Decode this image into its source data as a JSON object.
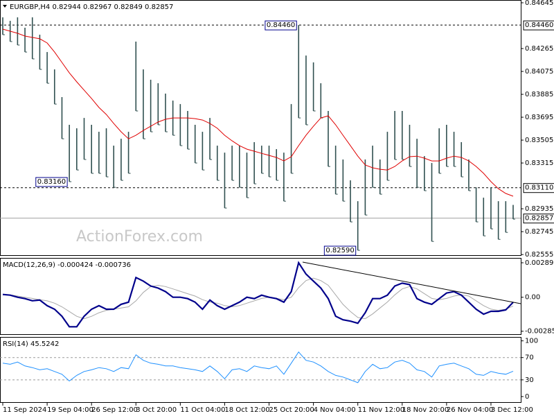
{
  "chart_data": [
    {
      "type": "hilo",
      "title": "EURGBP,H4  0.82944 0.82967 0.82849 0.82857",
      "watermark": "ActionForex.com",
      "categories": [
        "11 Sep 2024",
        null,
        null,
        null,
        null,
        null,
        "19 Sep 04:00",
        null,
        null,
        null,
        null,
        null,
        "26 Sep 12:00",
        null,
        null,
        null,
        null,
        null,
        "3 Oct 20:00",
        null,
        null,
        null,
        null,
        null,
        "11 Oct 04:00",
        null,
        null,
        null,
        null,
        null,
        "18 Oct 12:00",
        null,
        null,
        null,
        null,
        null,
        "25 Oct 20:00",
        null,
        null,
        null,
        null,
        null,
        "4 Nov 04:00",
        null,
        null,
        null,
        null,
        null,
        "11 Nov 12:00",
        null,
        null,
        null,
        null,
        null,
        "18 Nov 20:00",
        null,
        null,
        null,
        null,
        null,
        "26 Nov 04:00",
        null,
        null,
        null,
        null,
        null,
        "3 Dec 12:00",
        null,
        null,
        null
      ],
      "color": "#2f4f4f",
      "high": [
        0.84524,
        0.84495,
        0.84524,
        0.84438,
        0.84524,
        0.8438,
        0.84236,
        0.84092,
        0.83862,
        0.83632,
        0.83603,
        0.83689,
        0.83632,
        0.83574,
        0.83603,
        0.83459,
        0.83516,
        0.83574,
        0.84323,
        0.84092,
        0.84006,
        0.83977,
        0.83891,
        0.83833,
        0.83804,
        0.83747,
        0.83632,
        0.83574,
        0.83689,
        0.83459,
        0.83401,
        0.83459,
        0.83459,
        0.83401,
        0.83488,
        0.83459,
        0.83459,
        0.8343,
        0.83401,
        0.83804,
        0.8446,
        0.84207,
        0.8415,
        0.83977,
        0.83747,
        0.83459,
        0.83344,
        0.83171,
        0.82998,
        0.83344,
        0.83459,
        0.83344,
        0.83574,
        0.83747,
        0.83747,
        0.83632,
        0.83516,
        0.83372,
        0.83315,
        0.83603,
        0.83632,
        0.83574,
        0.83488,
        0.83344,
        0.83113,
        0.83027,
        0.83113,
        0.82998,
        0.82998,
        0.82967
      ],
      "low": [
        0.8438,
        0.84323,
        0.84294,
        0.84236,
        0.84179,
        0.84092,
        0.83977,
        0.83804,
        0.83516,
        0.8316,
        0.83257,
        0.83344,
        0.83229,
        0.83229,
        0.832,
        0.83113,
        0.83171,
        0.83229,
        0.83747,
        0.83516,
        0.83574,
        0.83632,
        0.83574,
        0.83545,
        0.83459,
        0.8343,
        0.83315,
        0.83257,
        0.83344,
        0.83171,
        0.82941,
        0.83171,
        0.83113,
        0.83027,
        0.83142,
        0.83229,
        0.832,
        0.83171,
        0.82998,
        0.83229,
        0.83689,
        0.83632,
        0.83747,
        0.83689,
        0.83286,
        0.83056,
        0.82998,
        0.82826,
        0.8259,
        0.82883,
        0.83113,
        0.83056,
        0.83171,
        0.83344,
        0.83344,
        0.83286,
        0.83113,
        0.83085,
        0.82664,
        0.83229,
        0.83286,
        0.83286,
        0.832,
        0.83085,
        0.82826,
        0.8271,
        0.82768,
        0.82681,
        0.82739,
        0.82849
      ],
      "ma": {
        "color": "#e00000",
        "values": [
          0.84426,
          0.84409,
          0.84392,
          0.84369,
          0.84357,
          0.84346,
          0.84311,
          0.84236,
          0.8415,
          0.84063,
          0.83989,
          0.83919,
          0.8385,
          0.83776,
          0.83718,
          0.83643,
          0.83574,
          0.83516,
          0.83545,
          0.83585,
          0.8362,
          0.83655,
          0.83678,
          0.83689,
          0.83689,
          0.83689,
          0.83683,
          0.83672,
          0.83643,
          0.83603,
          0.83545,
          0.83499,
          0.83459,
          0.8343,
          0.83413,
          0.83395,
          0.83378,
          0.83361,
          0.83332,
          0.83367,
          0.83459,
          0.83545,
          0.8362,
          0.83689,
          0.83706,
          0.83632,
          0.83545,
          0.83459,
          0.83372,
          0.83298,
          0.83275,
          0.83263,
          0.83257,
          0.83286,
          0.83332,
          0.83367,
          0.83372,
          0.83355,
          0.83332,
          0.83332,
          0.83355,
          0.83372,
          0.83361,
          0.83332,
          0.83286,
          0.83229,
          0.8316,
          0.83102,
          0.83062,
          0.83039
        ]
      },
      "ylim": [
        0.8255,
        0.84668
      ],
      "yticks": [
        0.84645,
        0.84265,
        0.84075,
        0.83885,
        0.83695,
        0.83505,
        0.83315,
        0.82935,
        0.82745,
        0.82555
      ],
      "levels": [
        {
          "value": 0.8446,
          "label": "0.84460"
        },
        {
          "value": 0.8311,
          "label": "0.83110"
        }
      ],
      "annotations": [
        {
          "value": 0.8446,
          "label": "0.84460"
        },
        {
          "value": 0.8316,
          "label": "0.83160"
        },
        {
          "value": 0.8259,
          "label": "0.82590"
        }
      ],
      "current": 0.82857
    },
    {
      "type": "macd",
      "title": "MACD(12,26,9) -0.000424 -0.000736",
      "series": [
        {
          "color": "#00008b",
          "values": [
            0.000236,
            0.000177,
            0,
            -0.000118,
            -0.000295,
            -0.000236,
            -0.000708,
            -0.001003,
            -0.001593,
            -0.002478,
            -0.002478,
            -0.001593,
            -0.001003,
            -0.000708,
            -0.001003,
            -0.001003,
            -0.00059,
            -0.000413,
            0.001652,
            0.001357,
            0.000944,
            0.000767,
            0.000472,
            0,
            0,
            -0.000118,
            -0.000413,
            -0.001003,
            -0.000236,
            -0.000708,
            -0.001003,
            -0.000708,
            -0.000413,
            0,
            -0.000118,
            0.000177,
            0,
            -0.000118,
            -0.000413,
            0.000472,
            0.002893,
            0.001947,
            0.001357,
            0.000767,
            -0.000118,
            -0.001593,
            -0.001888,
            -0.002006,
            -0.002183,
            -0.001298,
            -0.000118,
            -0.000118,
            0.000177,
            0.000944,
            0.00118,
            0.001062,
            -0.000118,
            -0.000413,
            -0.00059,
            -0.000118,
            0.000354,
            0.000472,
            0.000177,
            -0.000413,
            -0.001003,
            -0.001416,
            -0.00118,
            -0.00118,
            -0.001062,
            -0.000424
          ]
        },
        {
          "color": "#a8a8a8",
          "values": [
            0.0002,
            0.0002,
            0.0001,
            0,
            -0.0001,
            -0.0002,
            -0.0003,
            -0.0005,
            -0.0008,
            -0.0012,
            -0.0016,
            -0.0018,
            -0.0016,
            -0.0013,
            -0.0011,
            -0.001,
            -0.0009,
            -0.0008,
            -0.0003,
            0.0004,
            0.0009,
            0.001,
            0.0009,
            0.0007,
            0.0005,
            0.0003,
            0.0001,
            -0.0002,
            -0.0004,
            -0.0005,
            -0.0007,
            -0.0008,
            -0.0007,
            -0.0005,
            -0.0003,
            -0.0001,
            0,
            -0.0001,
            -0.0002,
            0,
            0.0008,
            0.0014,
            0.0016,
            0.0014,
            0.001,
            0.0002,
            -0.0006,
            -0.0012,
            -0.0017,
            -0.0018,
            -0.0014,
            -0.0009,
            -0.0004,
            0.0002,
            0.0007,
            0.0009,
            0.0007,
            0.0003,
            -0.0001,
            -0.0002,
            -0.0001,
            0.0001,
            0.0002,
            0.0001,
            -0.0003,
            -0.0007,
            -0.001,
            -0.0011,
            -0.001,
            -0.000736
          ]
        }
      ],
      "ylim": [
        -0.0031,
        0.0033
      ],
      "yticks": [
        0.002893,
        {
          "value": 0,
          "label": "0.00"
        },
        -0.002852
      ]
    },
    {
      "type": "line",
      "title": "RSI(14) 45.5242",
      "color": "#1e90ff",
      "values": [
        60,
        58,
        62,
        55,
        52,
        48,
        50,
        45,
        40,
        28,
        38,
        45,
        48,
        52,
        50,
        45,
        52,
        50,
        75,
        65,
        60,
        58,
        55,
        55,
        52,
        50,
        48,
        45,
        55,
        45,
        32,
        48,
        50,
        45,
        55,
        52,
        50,
        55,
        40,
        60,
        80,
        65,
        62,
        55,
        45,
        38,
        35,
        30,
        25,
        45,
        58,
        50,
        52,
        62,
        65,
        60,
        48,
        45,
        35,
        55,
        58,
        60,
        55,
        50,
        40,
        38,
        45,
        42,
        40,
        45.5242
      ],
      "ylim": [
        -10,
        107
      ],
      "yticks": [
        100,
        70,
        30,
        0
      ],
      "levels": [
        70,
        30
      ]
    }
  ]
}
